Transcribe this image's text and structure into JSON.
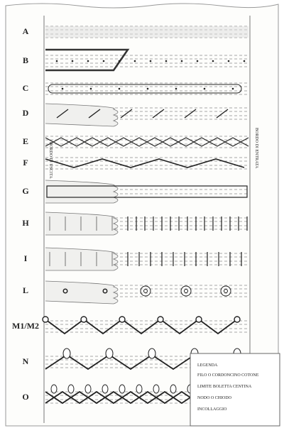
{
  "rows": [
    {
      "label": "A"
    },
    {
      "label": "B"
    },
    {
      "label": "C"
    },
    {
      "label": "D"
    },
    {
      "label": "E"
    },
    {
      "label": "F"
    },
    {
      "label": "G"
    },
    {
      "label": "H"
    },
    {
      "label": "I"
    },
    {
      "label": "L"
    },
    {
      "label": "M1/M2"
    },
    {
      "label": "N"
    },
    {
      "label": "O"
    }
  ],
  "side_labels": {
    "left": "BORDO DI USCITA",
    "right": "BORDO DI ENTRATA"
  },
  "legend": {
    "title": "LEGENDA",
    "items": [
      "FILO O CORDONCINO COTONE",
      "LIMITE BOLETTA CENTINA",
      "NODO O CHIODO",
      "INCOLLAGGIO"
    ]
  }
}
